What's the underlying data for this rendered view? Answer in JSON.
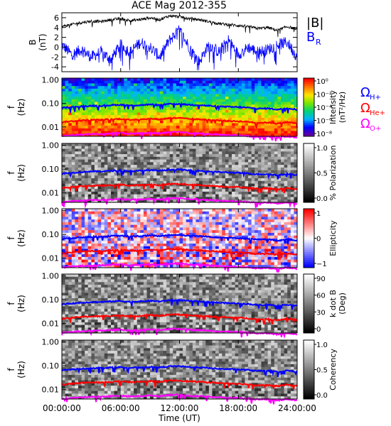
{
  "chart_data": [
    {
      "type": "line",
      "panel": "B",
      "title": "ACE Mag 2012-355",
      "ylabel": "B\n(nT)",
      "ylim": [
        -5,
        7
      ],
      "yticks": [
        -4,
        -2,
        0,
        2,
        4,
        6
      ],
      "xlim": [
        0,
        24
      ],
      "series": [
        {
          "name": "|B|",
          "color": "#000000",
          "x": [
            0,
            1,
            2,
            3,
            4,
            5,
            6,
            7,
            8,
            9,
            10,
            11,
            12,
            13,
            14,
            15,
            16,
            17,
            18,
            19,
            20,
            21,
            22,
            23,
            24
          ],
          "y": [
            4.2,
            4.6,
            5.0,
            5.3,
            5.2,
            5.6,
            5.8,
            5.4,
            5.6,
            6.0,
            5.6,
            6.4,
            6.2,
            5.8,
            5.6,
            5.2,
            4.8,
            4.6,
            4.4,
            4.2,
            3.8,
            4.0,
            3.4,
            4.2,
            3.6
          ]
        },
        {
          "name": "B",
          "subscript": "R",
          "color": "#0000ff",
          "x": [
            0,
            1,
            2,
            3,
            4,
            5,
            6,
            7,
            8,
            9,
            10,
            11,
            12,
            13,
            14,
            15,
            16,
            17,
            18,
            19,
            20,
            21,
            22,
            23,
            24
          ],
          "y": [
            0.5,
            -1.5,
            -0.5,
            -2.0,
            -1.0,
            -2.5,
            0.5,
            -1.0,
            1.0,
            0.0,
            -2.0,
            1.5,
            3.5,
            0.0,
            -3.0,
            0.5,
            -1.0,
            1.5,
            -1.5,
            0.0,
            -1.0,
            -0.5,
            0.5,
            1.0,
            -2.0
          ]
        }
      ],
      "legend": [
        {
          "text": "|B|",
          "color": "#000000"
        },
        {
          "text": "B",
          "sub": "R",
          "color": "#0000ff"
        }
      ]
    },
    {
      "type": "heatmap",
      "panel": "Intensity",
      "ylabel": "f\n(Hz)",
      "yscale": "log",
      "ylim": [
        0.004,
        1.2
      ],
      "yticks": [
        "1.00",
        "0.10",
        "0.01"
      ],
      "colorbar": {
        "title": "Intensity\n(nT²/Hz)",
        "colormap": "rainbow",
        "scale": "log",
        "ticks": [
          "10⁰",
          "10⁻²",
          "10⁻⁴",
          "10⁻⁶",
          "10⁻⁸"
        ]
      },
      "legend": [
        {
          "text": "Ω",
          "sub": "H+",
          "color": "#0000ff"
        },
        {
          "text": "Ω",
          "sub": "He+",
          "color": "#ff0000"
        },
        {
          "text": "Ω",
          "sub": "O+",
          "color": "#ff00ff"
        }
      ]
    },
    {
      "type": "heatmap",
      "panel": "Polarization",
      "ylabel": "f\n(Hz)",
      "yscale": "log",
      "yticks": [
        "1.00",
        "0.10",
        "0.01"
      ],
      "colorbar": {
        "title": "% Polarization",
        "colormap": "gray",
        "ticks": [
          "1.0",
          "0.5",
          "0.0"
        ]
      }
    },
    {
      "type": "heatmap",
      "panel": "Ellipticity",
      "ylabel": "f\n(Hz)",
      "yscale": "log",
      "yticks": [
        "1.00",
        "0.10",
        "0.01"
      ],
      "colorbar": {
        "title": "Ellipticity",
        "colormap": "blue-white-red",
        "ticks": [
          "1",
          "0",
          "−1"
        ]
      }
    },
    {
      "type": "heatmap",
      "panel": "kdotB",
      "ylabel": "f\n(Hz)",
      "yscale": "log",
      "yticks": [
        "1.00",
        "0.10",
        "0.01"
      ],
      "colorbar": {
        "title": "k dot B\n(Deg)",
        "colormap": "gray",
        "ticks": [
          "90",
          "60",
          "30",
          "0"
        ]
      }
    },
    {
      "type": "heatmap",
      "panel": "Coherency",
      "ylabel": "f\n(Hz)",
      "yscale": "log",
      "yticks": [
        "1.00",
        "0.10",
        "0.01"
      ],
      "colorbar": {
        "title": "Coherency",
        "colormap": "gray",
        "ticks": [
          "1.0",
          "0.5",
          "0.0"
        ]
      },
      "xlabel": "Time (UT)",
      "xticks": [
        "00:00:00",
        "06:00:00",
        "12:00:00",
        "18:00:00",
        "24:00:00"
      ],
      "xlim": [
        0,
        24
      ]
    }
  ],
  "gyrofrequency_lines": {
    "x": [
      0,
      1,
      2,
      3,
      4,
      5,
      6,
      7,
      8,
      9,
      10,
      11,
      12,
      13,
      14,
      15,
      16,
      17,
      18,
      19,
      20,
      21,
      22,
      23,
      24
    ],
    "H+": [
      0.065,
      0.07,
      0.075,
      0.08,
      0.08,
      0.085,
      0.088,
      0.082,
      0.085,
      0.09,
      0.085,
      0.095,
      0.095,
      0.088,
      0.085,
      0.08,
      0.075,
      0.072,
      0.07,
      0.066,
      0.06,
      0.062,
      0.055,
      0.063,
      0.055
    ],
    "He+": [
      0.016,
      0.0175,
      0.019,
      0.02,
      0.02,
      0.021,
      0.022,
      0.0205,
      0.021,
      0.0225,
      0.021,
      0.024,
      0.024,
      0.022,
      0.021,
      0.02,
      0.019,
      0.018,
      0.0175,
      0.0165,
      0.015,
      0.0155,
      0.014,
      0.016,
      0.014
    ],
    "O+": [
      0.0041,
      0.0044,
      0.0047,
      0.005,
      0.005,
      0.0053,
      0.0055,
      0.0051,
      0.0053,
      0.0056,
      0.0053,
      0.006,
      0.006,
      0.0055,
      0.0053,
      0.005,
      0.0047,
      0.0045,
      0.0044,
      0.0041,
      0.0038,
      0.0039,
      0.0035,
      0.004,
      0.0035
    ]
  }
}
